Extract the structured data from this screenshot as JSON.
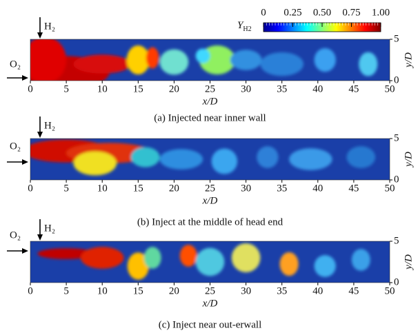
{
  "colorbar": {
    "label": "Y",
    "label_sub": "H2",
    "ticks": [
      0,
      0.25,
      {
        "value": 0.5,
        "label": "0.50"
      },
      0.75,
      {
        "value": 1,
        "label": "1.00"
      }
    ],
    "lim": [
      0,
      1
    ]
  },
  "panels": [
    {
      "caption": "(a) Injected near inner wall",
      "xlabel": "x/D",
      "ylabel": "y/D",
      "fuel": "H₂",
      "oxidizer": "O₂",
      "xlim": [
        0,
        50
      ],
      "xticks": [
        0,
        5,
        10,
        15,
        20,
        25,
        30,
        35,
        40,
        45,
        50
      ],
      "ylim": [
        0,
        5
      ],
      "yticks": [
        0,
        5
      ]
    },
    {
      "caption": "(b) Inject at the middle of head end",
      "xlabel": "x/D",
      "ylabel": "y/D",
      "fuel": "H₂",
      "oxidizer": "O₂",
      "xlim": [
        0,
        50
      ],
      "xticks": [
        0,
        5,
        10,
        15,
        20,
        25,
        30,
        35,
        40,
        45,
        50
      ],
      "ylim": [
        0,
        5
      ],
      "yticks": [
        0,
        5
      ]
    },
    {
      "caption": "(c) Inject near out-erwall",
      "xlabel": "x/D",
      "ylabel": "y/D",
      "fuel": "H₂",
      "oxidizer": "O₂",
      "xlim": [
        0,
        50
      ],
      "xticks": [
        0,
        5,
        10,
        15,
        20,
        25,
        30,
        35,
        40,
        45,
        50
      ],
      "ylim": [
        0,
        5
      ],
      "yticks": [
        0,
        5
      ]
    }
  ]
}
